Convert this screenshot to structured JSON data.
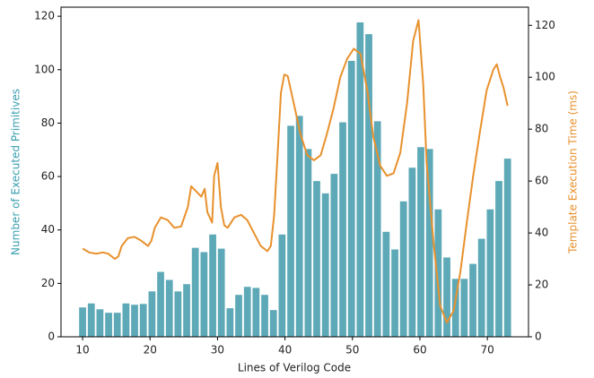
{
  "chart_data": {
    "type": "bar-line",
    "x_label": "Lines of Verilog Code",
    "y_label": "Number of Executed Primitives",
    "y2_label": "Template Execution Time (ms)",
    "xlim": [
      6.8,
      76.1
    ],
    "xticks": [
      10,
      20,
      30,
      40,
      50,
      60,
      70
    ],
    "ylim": [
      0,
      123.4
    ],
    "yticks": [
      0,
      20,
      40,
      60,
      80,
      100,
      120
    ],
    "y2lim": [
      0,
      127
    ],
    "y2ticks": [
      0,
      20,
      40,
      60,
      80,
      100,
      120
    ],
    "series": [
      {
        "type": "bar",
        "color": "#5ea9b7",
        "x": [
          10,
          11.29,
          12.57,
          13.86,
          15.14,
          16.43,
          17.71,
          19,
          20.29,
          21.57,
          22.86,
          24.14,
          25.43,
          26.71,
          28,
          29.29,
          30.57,
          31.86,
          33.14,
          34.43,
          35.71,
          37,
          38.29,
          39.57,
          40.86,
          42.14,
          43.43,
          44.71,
          46,
          47.29,
          48.57,
          49.86,
          51.14,
          52.43,
          53.71,
          55,
          56.29,
          57.57,
          58.86,
          60.14,
          61.43,
          62.71,
          64,
          65.29,
          66.57,
          67.86,
          69.14,
          70.43,
          71.71,
          73
        ],
        "values": [
          11,
          12.5,
          10.3,
          9,
          9,
          12.5,
          12,
          12.3,
          17,
          24.3,
          21.3,
          17,
          19.7,
          33.3,
          31.7,
          38.3,
          33,
          10.7,
          15.7,
          18.7,
          18.3,
          15.7,
          10,
          38.3,
          79,
          82.7,
          70.3,
          58.3,
          53.7,
          61,
          80.3,
          103.3,
          117.7,
          113.3,
          80.7,
          39.3,
          32.7,
          50.7,
          63.3,
          71,
          70.3,
          47.7,
          29.7,
          21.7,
          21.7,
          27.3,
          36.7,
          47.7,
          58.3,
          66.7
        ]
      },
      {
        "type": "line",
        "axis": "y2",
        "color": "#e8912d",
        "x": [
          10,
          11,
          12,
          13,
          13.8,
          14.8,
          15.3,
          15.8,
          16.7,
          17.7,
          18.7,
          19.7,
          20.2,
          20.7,
          21.6,
          22.6,
          23.6,
          24.6,
          25.6,
          26.1,
          27.6,
          28.1,
          28.5,
          29.2,
          29.5,
          30,
          30.5,
          31,
          31.5,
          32.5,
          33.5,
          34.4,
          35.4,
          36.4,
          37.4,
          37.9,
          38.4,
          38.9,
          39.4,
          39.9,
          40.4,
          41.3,
          42.3,
          43.3,
          44.3,
          45.3,
          46.2,
          47.2,
          48.2,
          49.2,
          50.2,
          51.2,
          52.2,
          53.1,
          54.1,
          55.1,
          56.1,
          57.1,
          58.1,
          59,
          59.8,
          60.5,
          61,
          62,
          63,
          64,
          65,
          66,
          66.9,
          67.9,
          68.9,
          69.9,
          70.9,
          71.4,
          71.9,
          72.4,
          73
        ],
        "values": [
          34,
          32.5,
          32,
          32.5,
          32,
          30,
          31,
          35,
          38,
          38.5,
          37,
          35,
          37,
          42,
          46,
          45,
          42,
          42.5,
          50,
          58,
          54,
          57,
          48,
          44,
          62,
          67,
          50,
          43,
          42,
          46,
          47,
          45,
          40,
          35,
          33,
          35,
          47,
          70,
          94,
          101,
          100.5,
          90,
          78,
          70,
          68,
          70,
          78,
          88,
          100,
          107,
          111,
          109,
          95,
          77,
          66,
          62,
          63,
          71,
          90,
          114,
          122,
          97,
          67,
          37,
          12,
          5.5,
          10,
          25,
          43,
          62,
          79,
          95,
          103,
          105,
          100,
          96,
          89
        ]
      }
    ]
  }
}
